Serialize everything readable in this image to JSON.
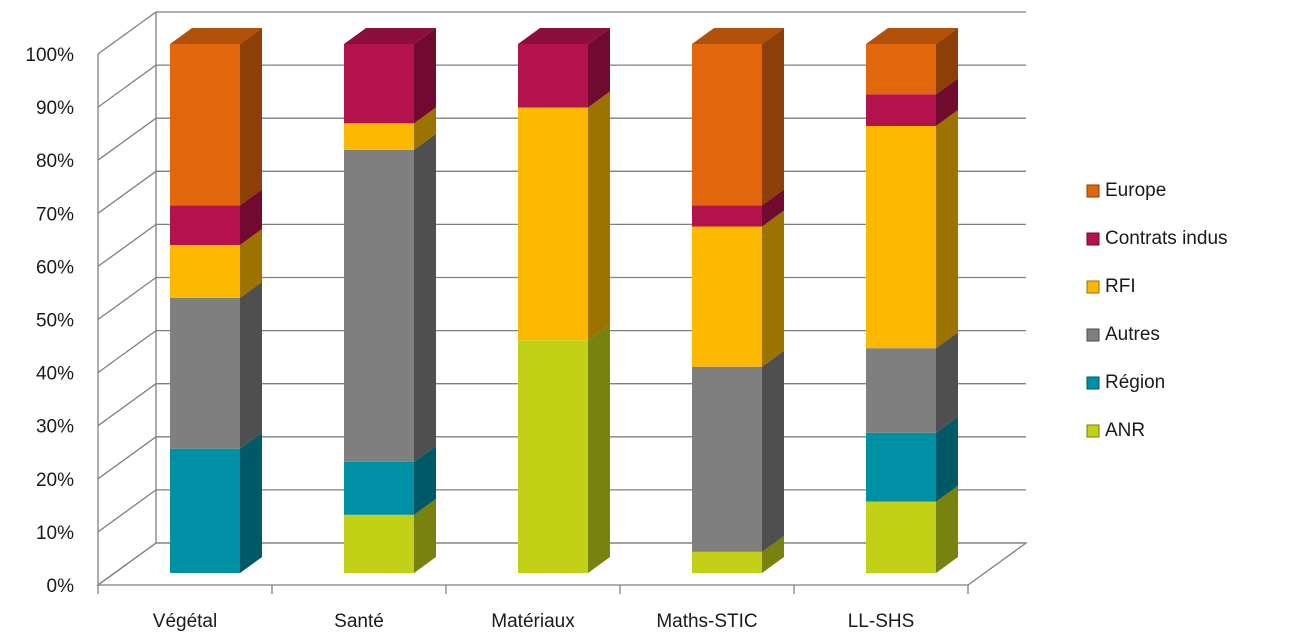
{
  "chart_data": {
    "type": "bar",
    "stacked": true,
    "percent_stacked": true,
    "three_d": true,
    "title": "",
    "xlabel": "",
    "ylabel": "",
    "ylim": [
      0,
      100
    ],
    "y_ticks": [
      "0%",
      "10%",
      "20%",
      "30%",
      "40%",
      "50%",
      "60%",
      "70%",
      "80%",
      "90%",
      "100%"
    ],
    "grid": true,
    "legend_position": "right",
    "categories": [
      "Végétal",
      "Santé",
      "Matériaux",
      "Maths-STIC",
      "LL-SHS"
    ],
    "series": [
      {
        "name": "ANR",
        "color": "#c2d116",
        "values": [
          0,
          11,
          44,
          4,
          13.5
        ]
      },
      {
        "name": "Région",
        "color": "#0090a6",
        "values": [
          23.5,
          10,
          0,
          0,
          13
        ]
      },
      {
        "name": "Autres",
        "color": "#7f7f7f",
        "values": [
          28.5,
          59,
          0,
          35,
          16
        ]
      },
      {
        "name": "RFI",
        "color": "#fdb900",
        "values": [
          10,
          5,
          44,
          26.5,
          42
        ]
      },
      {
        "name": "Contrats indus",
        "color": "#b4124c",
        "values": [
          7.5,
          15,
          12,
          4,
          6
        ]
      },
      {
        "name": "Europe",
        "color": "#e2660c",
        "values": [
          30.5,
          0,
          0,
          30.5,
          9.5
        ]
      }
    ],
    "legend_entries": [
      "Europe",
      "Contrats indus",
      "RFI",
      "Autres",
      "Région",
      "ANR"
    ]
  }
}
